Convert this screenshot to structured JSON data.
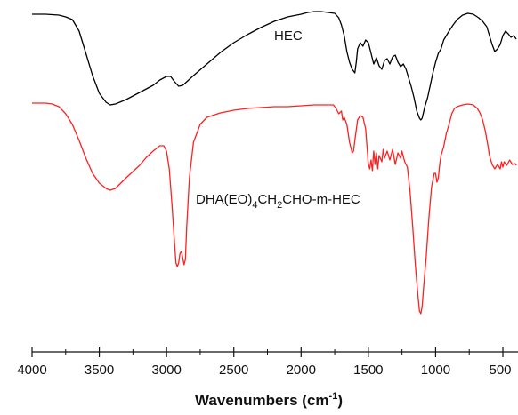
{
  "chart_data": {
    "type": "line",
    "xlabel_main": "Wavenumbers (cm",
    "xlabel_sup": "-1",
    "xlabel_close": ")",
    "xlim": [
      4000,
      400
    ],
    "x_reversed": true,
    "x_ticks": [
      "4000",
      "3500",
      "3000",
      "2500",
      "2000",
      "1500",
      "1000",
      "500"
    ],
    "x_tick_values": [
      4000,
      3500,
      3000,
      2500,
      2000,
      1500,
      1000,
      500
    ],
    "y_axis_shown": false,
    "grid": false,
    "series": [
      {
        "name": "HEC",
        "color": "#000000",
        "annotation": {
          "text": "HEC"
        },
        "points": [
          [
            4000,
            16
          ],
          [
            3900,
            16
          ],
          [
            3800,
            17
          ],
          [
            3750,
            19
          ],
          [
            3700,
            22
          ],
          [
            3650,
            35
          ],
          [
            3600,
            60
          ],
          [
            3550,
            85
          ],
          [
            3500,
            105
          ],
          [
            3450,
            115
          ],
          [
            3420,
            118
          ],
          [
            3380,
            117
          ],
          [
            3300,
            112
          ],
          [
            3200,
            104
          ],
          [
            3100,
            96
          ],
          [
            3050,
            90
          ],
          [
            3000,
            86
          ],
          [
            2970,
            86
          ],
          [
            2940,
            92
          ],
          [
            2910,
            97
          ],
          [
            2880,
            96
          ],
          [
            2850,
            92
          ],
          [
            2800,
            85
          ],
          [
            2700,
            72
          ],
          [
            2600,
            59
          ],
          [
            2500,
            48
          ],
          [
            2400,
            39
          ],
          [
            2300,
            31
          ],
          [
            2200,
            24
          ],
          [
            2100,
            19
          ],
          [
            2000,
            16
          ],
          [
            1950,
            14
          ],
          [
            1900,
            13
          ],
          [
            1850,
            13
          ],
          [
            1800,
            14
          ],
          [
            1750,
            15
          ],
          [
            1720,
            20
          ],
          [
            1700,
            28
          ],
          [
            1680,
            40
          ],
          [
            1660,
            58
          ],
          [
            1640,
            70
          ],
          [
            1620,
            78
          ],
          [
            1600,
            82
          ],
          [
            1590,
            70
          ],
          [
            1580,
            55
          ],
          [
            1560,
            48
          ],
          [
            1540,
            52
          ],
          [
            1520,
            45
          ],
          [
            1500,
            48
          ],
          [
            1480,
            60
          ],
          [
            1460,
            72
          ],
          [
            1440,
            65
          ],
          [
            1420,
            74
          ],
          [
            1400,
            78
          ],
          [
            1380,
            68
          ],
          [
            1360,
            66
          ],
          [
            1340,
            72
          ],
          [
            1320,
            64
          ],
          [
            1300,
            62
          ],
          [
            1280,
            70
          ],
          [
            1260,
            75
          ],
          [
            1240,
            72
          ],
          [
            1220,
            78
          ],
          [
            1200,
            88
          ],
          [
            1180,
            98
          ],
          [
            1160,
            110
          ],
          [
            1140,
            125
          ],
          [
            1120,
            133
          ],
          [
            1110,
            135
          ],
          [
            1100,
            133
          ],
          [
            1080,
            120
          ],
          [
            1060,
            110
          ],
          [
            1040,
            96
          ],
          [
            1020,
            82
          ],
          [
            1000,
            70
          ],
          [
            980,
            60
          ],
          [
            960,
            55
          ],
          [
            940,
            45
          ],
          [
            920,
            40
          ],
          [
            900,
            35
          ],
          [
            870,
            28
          ],
          [
            840,
            22
          ],
          [
            800,
            17
          ],
          [
            760,
            15
          ],
          [
            720,
            16
          ],
          [
            680,
            20
          ],
          [
            650,
            24
          ],
          [
            620,
            30
          ],
          [
            600,
            40
          ],
          [
            580,
            50
          ],
          [
            560,
            58
          ],
          [
            540,
            55
          ],
          [
            520,
            50
          ],
          [
            500,
            40
          ],
          [
            480,
            35
          ],
          [
            460,
            38
          ],
          [
            440,
            42
          ],
          [
            420,
            40
          ],
          [
            400,
            44
          ]
        ]
      },
      {
        "name": "DHA(EO)4CH2CHO-m-HEC",
        "color": "#ff2020",
        "annotation": {
          "text_main": "DHA(EO)",
          "sub1": "4",
          "text_mid": "CH",
          "sub2": "2",
          "text_end": "CHO-m-HEC"
        },
        "points": [
          [
            4000,
            116
          ],
          [
            3900,
            116
          ],
          [
            3850,
            117
          ],
          [
            3800,
            120
          ],
          [
            3750,
            128
          ],
          [
            3700,
            140
          ],
          [
            3650,
            158
          ],
          [
            3600,
            178
          ],
          [
            3550,
            195
          ],
          [
            3500,
            206
          ],
          [
            3450,
            212
          ],
          [
            3420,
            214
          ],
          [
            3380,
            212
          ],
          [
            3300,
            200
          ],
          [
            3200,
            186
          ],
          [
            3150,
            177
          ],
          [
            3100,
            170
          ],
          [
            3050,
            164
          ],
          [
            3020,
            164
          ],
          [
            3000,
            170
          ],
          [
            2980,
            190
          ],
          [
            2960,
            230
          ],
          [
            2940,
            275
          ],
          [
            2930,
            296
          ],
          [
            2920,
            300
          ],
          [
            2910,
            296
          ],
          [
            2900,
            285
          ],
          [
            2890,
            283
          ],
          [
            2880,
            290
          ],
          [
            2870,
            298
          ],
          [
            2860,
            292
          ],
          [
            2850,
            255
          ],
          [
            2830,
            200
          ],
          [
            2800,
            160
          ],
          [
            2750,
            140
          ],
          [
            2700,
            132
          ],
          [
            2600,
            127
          ],
          [
            2500,
            124
          ],
          [
            2400,
            122
          ],
          [
            2300,
            121
          ],
          [
            2200,
            120
          ],
          [
            2100,
            120
          ],
          [
            2000,
            119
          ],
          [
            1900,
            118
          ],
          [
            1800,
            118
          ],
          [
            1760,
            118
          ],
          [
            1740,
            122
          ],
          [
            1720,
            128
          ],
          [
            1700,
            125
          ],
          [
            1690,
            135
          ],
          [
            1680,
            132
          ],
          [
            1660,
            140
          ],
          [
            1640,
            160
          ],
          [
            1620,
            172
          ],
          [
            1610,
            170
          ],
          [
            1600,
            158
          ],
          [
            1580,
            135
          ],
          [
            1560,
            130
          ],
          [
            1540,
            132
          ],
          [
            1520,
            145
          ],
          [
            1500,
            185
          ],
          [
            1490,
            190
          ],
          [
            1480,
            180
          ],
          [
            1470,
            192
          ],
          [
            1460,
            170
          ],
          [
            1450,
            185
          ],
          [
            1440,
            172
          ],
          [
            1430,
            190
          ],
          [
            1420,
            175
          ],
          [
            1400,
            182
          ],
          [
            1390,
            168
          ],
          [
            1380,
            178
          ],
          [
            1360,
            170
          ],
          [
            1340,
            180
          ],
          [
            1320,
            168
          ],
          [
            1300,
            185
          ],
          [
            1280,
            172
          ],
          [
            1260,
            178
          ],
          [
            1250,
            170
          ],
          [
            1230,
            182
          ],
          [
            1210,
            188
          ],
          [
            1190,
            215
          ],
          [
            1170,
            255
          ],
          [
            1150,
            300
          ],
          [
            1130,
            335
          ],
          [
            1120,
            350
          ],
          [
            1110,
            353
          ],
          [
            1100,
            345
          ],
          [
            1090,
            325
          ],
          [
            1070,
            290
          ],
          [
            1050,
            245
          ],
          [
            1030,
            210
          ],
          [
            1010,
            195
          ],
          [
            1000,
            195
          ],
          [
            990,
            205
          ],
          [
            980,
            200
          ],
          [
            970,
            185
          ],
          [
            960,
            175
          ],
          [
            940,
            165
          ],
          [
            920,
            150
          ],
          [
            900,
            140
          ],
          [
            880,
            128
          ],
          [
            860,
            122
          ],
          [
            840,
            120
          ],
          [
            800,
            118
          ],
          [
            760,
            117
          ],
          [
            720,
            118
          ],
          [
            690,
            122
          ],
          [
            670,
            127
          ],
          [
            650,
            135
          ],
          [
            630,
            148
          ],
          [
            610,
            165
          ],
          [
            600,
            175
          ],
          [
            580,
            185
          ],
          [
            560,
            190
          ],
          [
            540,
            185
          ],
          [
            520,
            190
          ],
          [
            510,
            182
          ],
          [
            500,
            188
          ],
          [
            490,
            182
          ],
          [
            470,
            186
          ],
          [
            450,
            180
          ],
          [
            430,
            185
          ],
          [
            410,
            184
          ],
          [
            400,
            186
          ]
        ]
      }
    ]
  }
}
